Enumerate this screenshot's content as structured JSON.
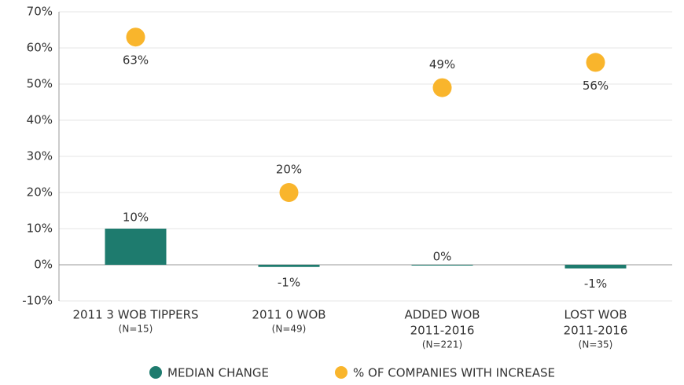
{
  "chart_data": {
    "type": "combo",
    "categories": [
      [
        "2011 3 WOB TIPPERS",
        "(N=15)"
      ],
      [
        "2011 0 WOB",
        "(N=49)"
      ],
      [
        "ADDED WOB",
        "2011-2016",
        "(N=221)"
      ],
      [
        "LOST WOB",
        "2011-2016",
        "(N=35)"
      ]
    ],
    "series": [
      {
        "name": "MEDIAN CHANGE",
        "type": "bar",
        "color": "#1e7b6e",
        "values": [
          10,
          -0.6,
          0,
          -1
        ],
        "value_labels": [
          "10%",
          "-1%",
          "0%",
          "-1%"
        ]
      },
      {
        "name": "% OF COMPANIES WITH INCREASE",
        "type": "scatter",
        "color": "#f9b52c",
        "values": [
          63,
          20,
          49,
          56
        ],
        "value_labels": [
          "63%",
          "20%",
          "49%",
          "56%"
        ]
      }
    ],
    "ylim": [
      -10,
      70
    ],
    "yticks": [
      {
        "value": -10,
        "label": "-10%"
      },
      {
        "value": 0,
        "label": "0%"
      },
      {
        "value": 10,
        "label": "10%"
      },
      {
        "value": 20,
        "label": "20%"
      },
      {
        "value": 30,
        "label": "30%"
      },
      {
        "value": 40,
        "label": "40%"
      },
      {
        "value": 50,
        "label": "50%"
      },
      {
        "value": 60,
        "label": "60%"
      },
      {
        "value": 70,
        "label": "70%"
      }
    ],
    "grid": true,
    "legend": "bottom"
  }
}
